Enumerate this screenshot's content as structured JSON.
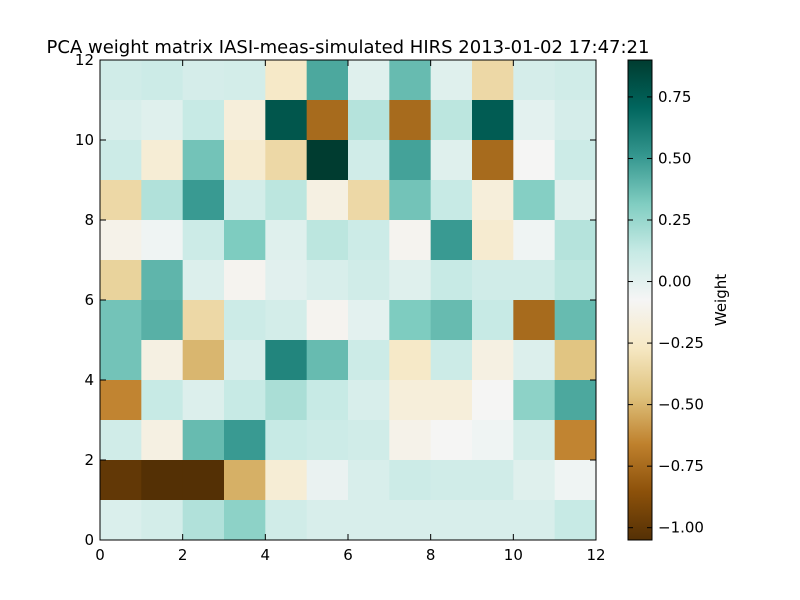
{
  "chart_data": {
    "type": "heatmap",
    "title": "PCA weight matrix IASI-meas-simulated HIRS 2013-01-02 17:47:21",
    "xlim": [
      0,
      12
    ],
    "ylim": [
      0,
      12
    ],
    "x_ticks": [
      "0",
      "2",
      "4",
      "6",
      "8",
      "10",
      "12"
    ],
    "y_ticks": [
      "0",
      "2",
      "4",
      "6",
      "8",
      "10",
      "12"
    ],
    "colorbar": {
      "label": "Weight",
      "range": [
        -1.05,
        0.9
      ],
      "ticks": [
        "0.75",
        "0.50",
        "0.25",
        "0.00",
        "−0.25",
        "−0.50",
        "−0.75",
        "−1.00"
      ],
      "colormap": "BrBG",
      "stops": [
        "#543005",
        "#8c510a",
        "#bf812d",
        "#dfc27d",
        "#f6e8c3",
        "#f5f5f5",
        "#c7eae5",
        "#80cdc1",
        "#35978f",
        "#01665e",
        "#003c30"
      ]
    },
    "rows_top_to_bottom": [
      [
        0.08,
        0.1,
        0.06,
        0.07,
        -0.25,
        0.45,
        0.02,
        0.38,
        0.02,
        -0.35,
        0.06,
        0.08
      ],
      [
        0.05,
        0.02,
        0.12,
        -0.18,
        0.78,
        -0.75,
        0.17,
        -0.75,
        0.15,
        0.75,
        0.0,
        0.06
      ],
      [
        0.1,
        -0.2,
        0.35,
        -0.22,
        -0.35,
        0.9,
        0.08,
        0.47,
        0.02,
        -0.75,
        -0.08,
        0.1
      ],
      [
        -0.35,
        0.18,
        0.5,
        0.07,
        0.15,
        -0.15,
        -0.35,
        0.35,
        0.12,
        -0.18,
        0.3,
        0.02
      ],
      [
        -0.12,
        -0.05,
        0.1,
        0.32,
        0.02,
        0.15,
        0.1,
        -0.1,
        0.5,
        -0.22,
        -0.05,
        0.17
      ],
      [
        -0.38,
        0.4,
        0.03,
        -0.1,
        0.01,
        0.05,
        0.08,
        0.02,
        0.12,
        0.08,
        0.08,
        0.15
      ],
      [
        0.35,
        0.42,
        -0.35,
        0.1,
        0.07,
        -0.1,
        0.0,
        0.32,
        0.38,
        0.12,
        -0.75,
        0.38
      ],
      [
        0.35,
        -0.15,
        -0.5,
        0.05,
        0.58,
        0.38,
        0.1,
        -0.25,
        0.1,
        -0.15,
        0.03,
        -0.45
      ],
      [
        -0.65,
        0.12,
        0.03,
        0.12,
        0.2,
        0.12,
        0.05,
        -0.18,
        -0.18,
        -0.08,
        0.28,
        0.45
      ],
      [
        0.08,
        -0.15,
        0.38,
        0.5,
        0.12,
        0.1,
        0.08,
        -0.12,
        -0.08,
        -0.05,
        0.07,
        -0.65
      ],
      [
        -1.0,
        -1.05,
        -1.05,
        -0.52,
        -0.2,
        -0.03,
        0.05,
        0.1,
        0.08,
        0.08,
        0.02,
        -0.05
      ],
      [
        0.04,
        0.07,
        0.18,
        0.28,
        0.08,
        0.05,
        0.05,
        0.05,
        0.05,
        0.05,
        0.05,
        0.12
      ]
    ]
  }
}
